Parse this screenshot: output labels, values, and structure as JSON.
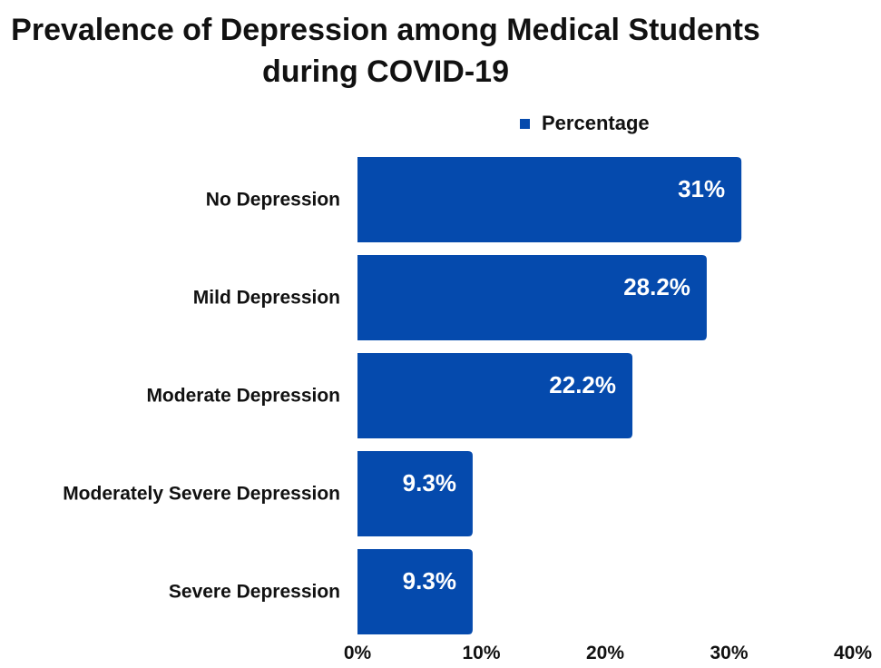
{
  "chart_data": {
    "type": "bar",
    "orientation": "horizontal",
    "title": "Prevalence of Depression among Medical Students during COVID-19",
    "categories": [
      "No Depression",
      "Mild Depression",
      "Moderate Depression",
      "Moderately Severe Depression",
      "Severe Depression"
    ],
    "series": [
      {
        "name": "Percentage",
        "values": [
          31,
          28.2,
          22.2,
          9.3,
          9.3
        ]
      }
    ],
    "data_labels": [
      "31%",
      "28.2%",
      "22.2%",
      "9.3%",
      "9.3%"
    ],
    "xlim": [
      0,
      40
    ],
    "xticks": [
      "0%",
      "10%",
      "20%",
      "30%",
      "40%"
    ],
    "xlabel": "",
    "ylabel": "",
    "legend_position": "top",
    "grid": false,
    "bar_color": "#054AAD"
  }
}
